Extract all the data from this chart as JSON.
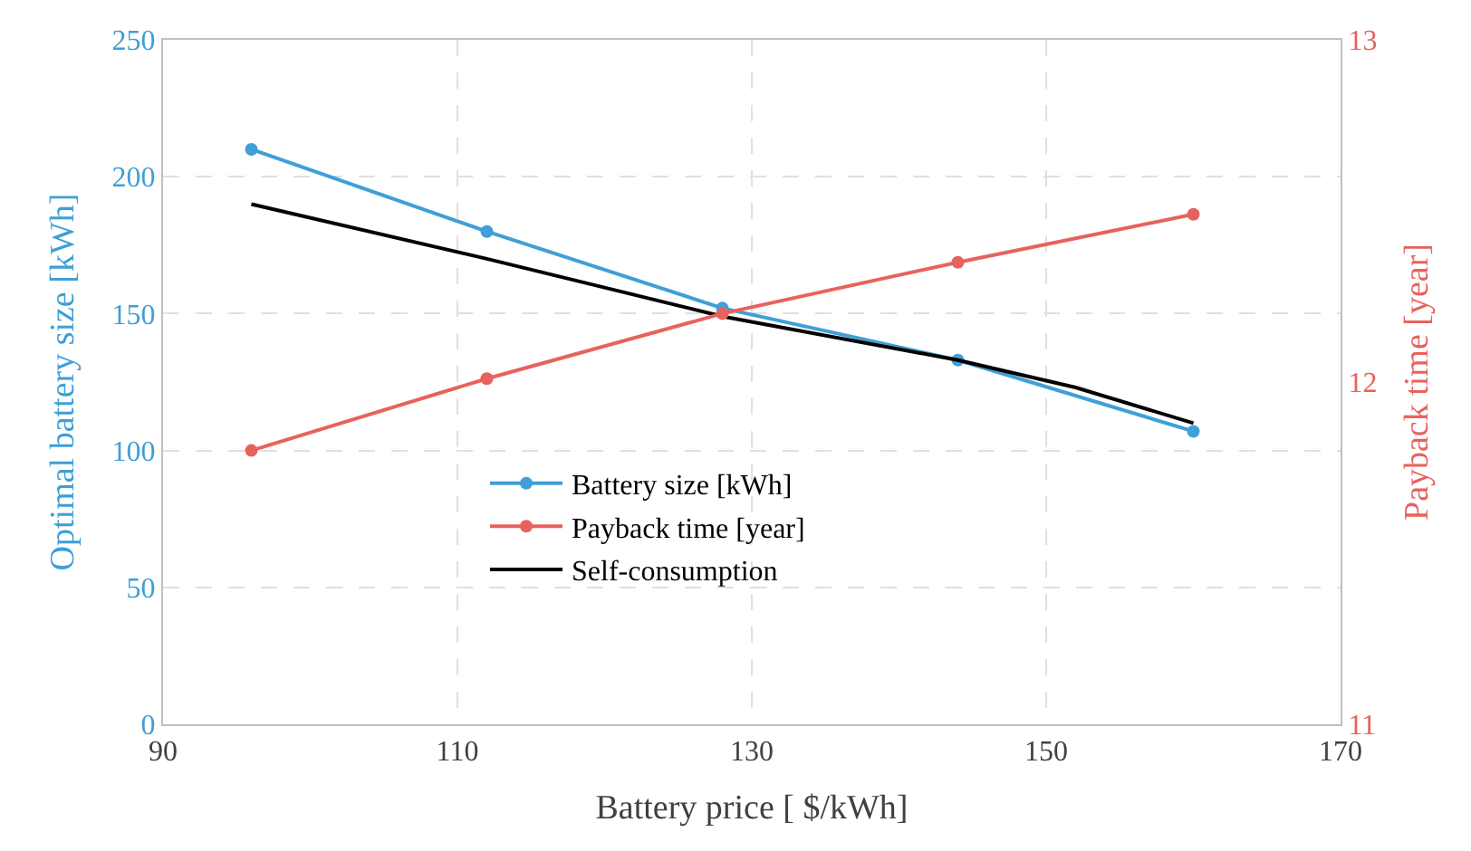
{
  "chart_data": {
    "type": "line",
    "xlabel": "Battery price [ $/kWh]",
    "ylabel": "Optimal battery size [kWh]",
    "y2label": "Payback time [year]",
    "xlim": [
      90,
      170
    ],
    "xticks": [
      90,
      110,
      130,
      150,
      170
    ],
    "ylim": [
      0,
      250
    ],
    "yticks": [
      0,
      50,
      100,
      150,
      200,
      250
    ],
    "y2lim": [
      11,
      13
    ],
    "y2ticks": [
      11,
      12,
      13
    ],
    "grid": true,
    "legend": "bottom left",
    "line_style": "solid",
    "series": [
      {
        "name": "Battery size [kWh]",
        "color": "#3f9fd6",
        "marker": "circle",
        "x": [
          96,
          112,
          128,
          144,
          160
        ],
        "values": [
          210,
          180,
          152,
          133,
          107
        ]
      },
      {
        "name": "Payback time [year]",
        "color": "#e8625d",
        "marker": "circle",
        "axis": "y2",
        "x": [
          96,
          112,
          128,
          144,
          160
        ],
        "values": [
          11.8,
          12.01,
          12.2,
          12.35,
          12.49
        ]
      },
      {
        "name": "Self-consumption",
        "color": "#000000",
        "marker": "none",
        "x": [
          96,
          112,
          128,
          144,
          152,
          160
        ],
        "values": [
          190,
          170,
          149,
          133,
          123,
          110
        ]
      }
    ]
  }
}
